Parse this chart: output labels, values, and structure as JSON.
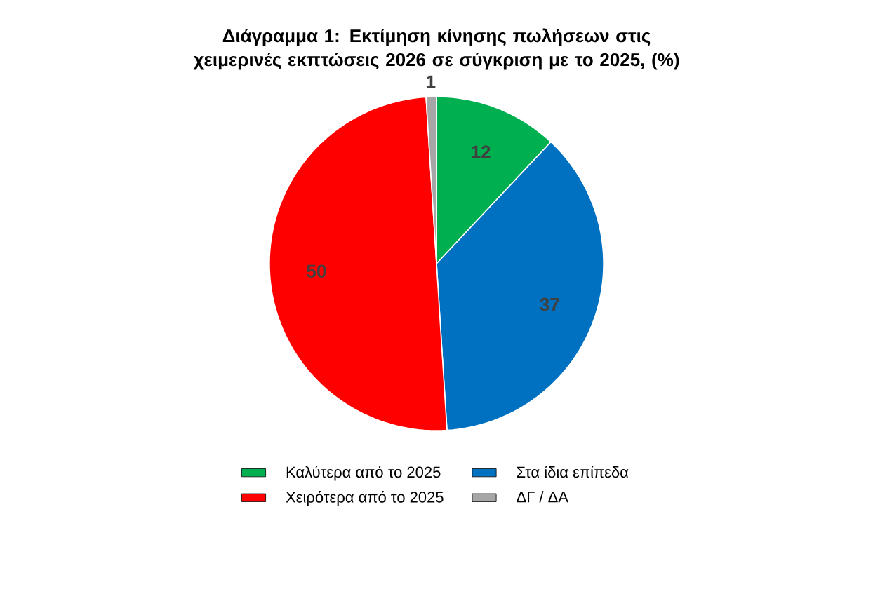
{
  "chart_data": {
    "type": "pie",
    "title": "Διάγραμμα 1: Εκτίμηση κίνησης πωλήσεων στις χειμερινές εκπτώσεις 2026 σε σύγκριση με το 2025, (%)",
    "categories": [
      "Καλύτερα από το 2025",
      "Στα ίδια επίπεδα",
      "Χειρότερα από το 2025",
      "ΔΓ / ΔΑ"
    ],
    "values": [
      12,
      37,
      50,
      1
    ],
    "colors": [
      "#00b050",
      "#0070c0",
      "#ff0000",
      "#a6a6a6"
    ],
    "data_labels": true,
    "legend": "bottom"
  }
}
